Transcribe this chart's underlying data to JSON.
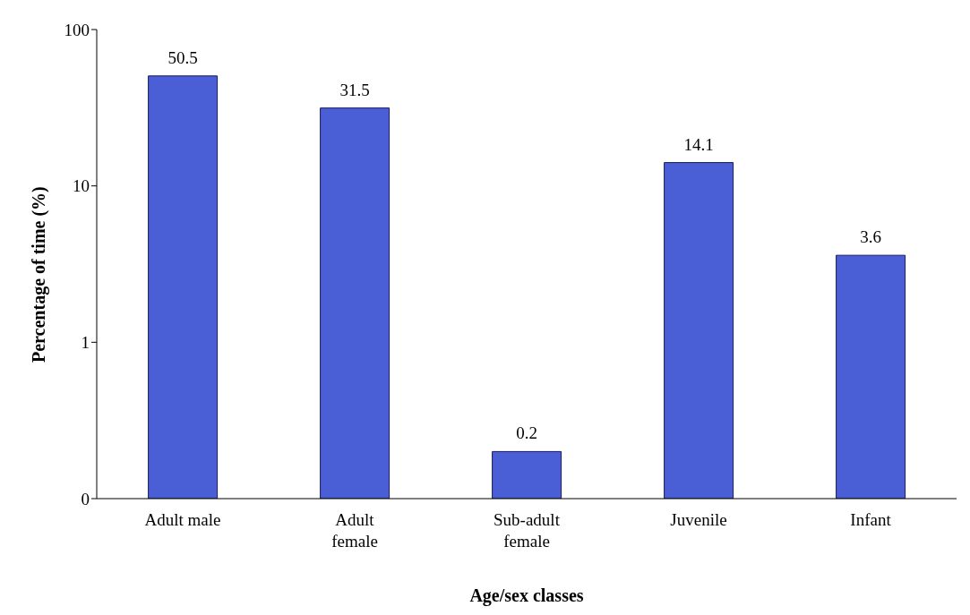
{
  "chart_data": {
    "type": "bar",
    "xlabel": "Age/sex classes",
    "ylabel": "Percentage of time (%)",
    "categories": [
      "Adult male",
      "Adult female",
      "Sub-adult female",
      "Juvenile",
      "Infant"
    ],
    "values": [
      50.5,
      31.5,
      0.2,
      14.1,
      3.6
    ],
    "color": "#4a5fd6",
    "ylim": [
      0.1,
      100
    ],
    "yticks": [
      {
        "value": 0.1,
        "label": "0"
      },
      1,
      10,
      100
    ],
    "log": true,
    "data_labels": true
  }
}
